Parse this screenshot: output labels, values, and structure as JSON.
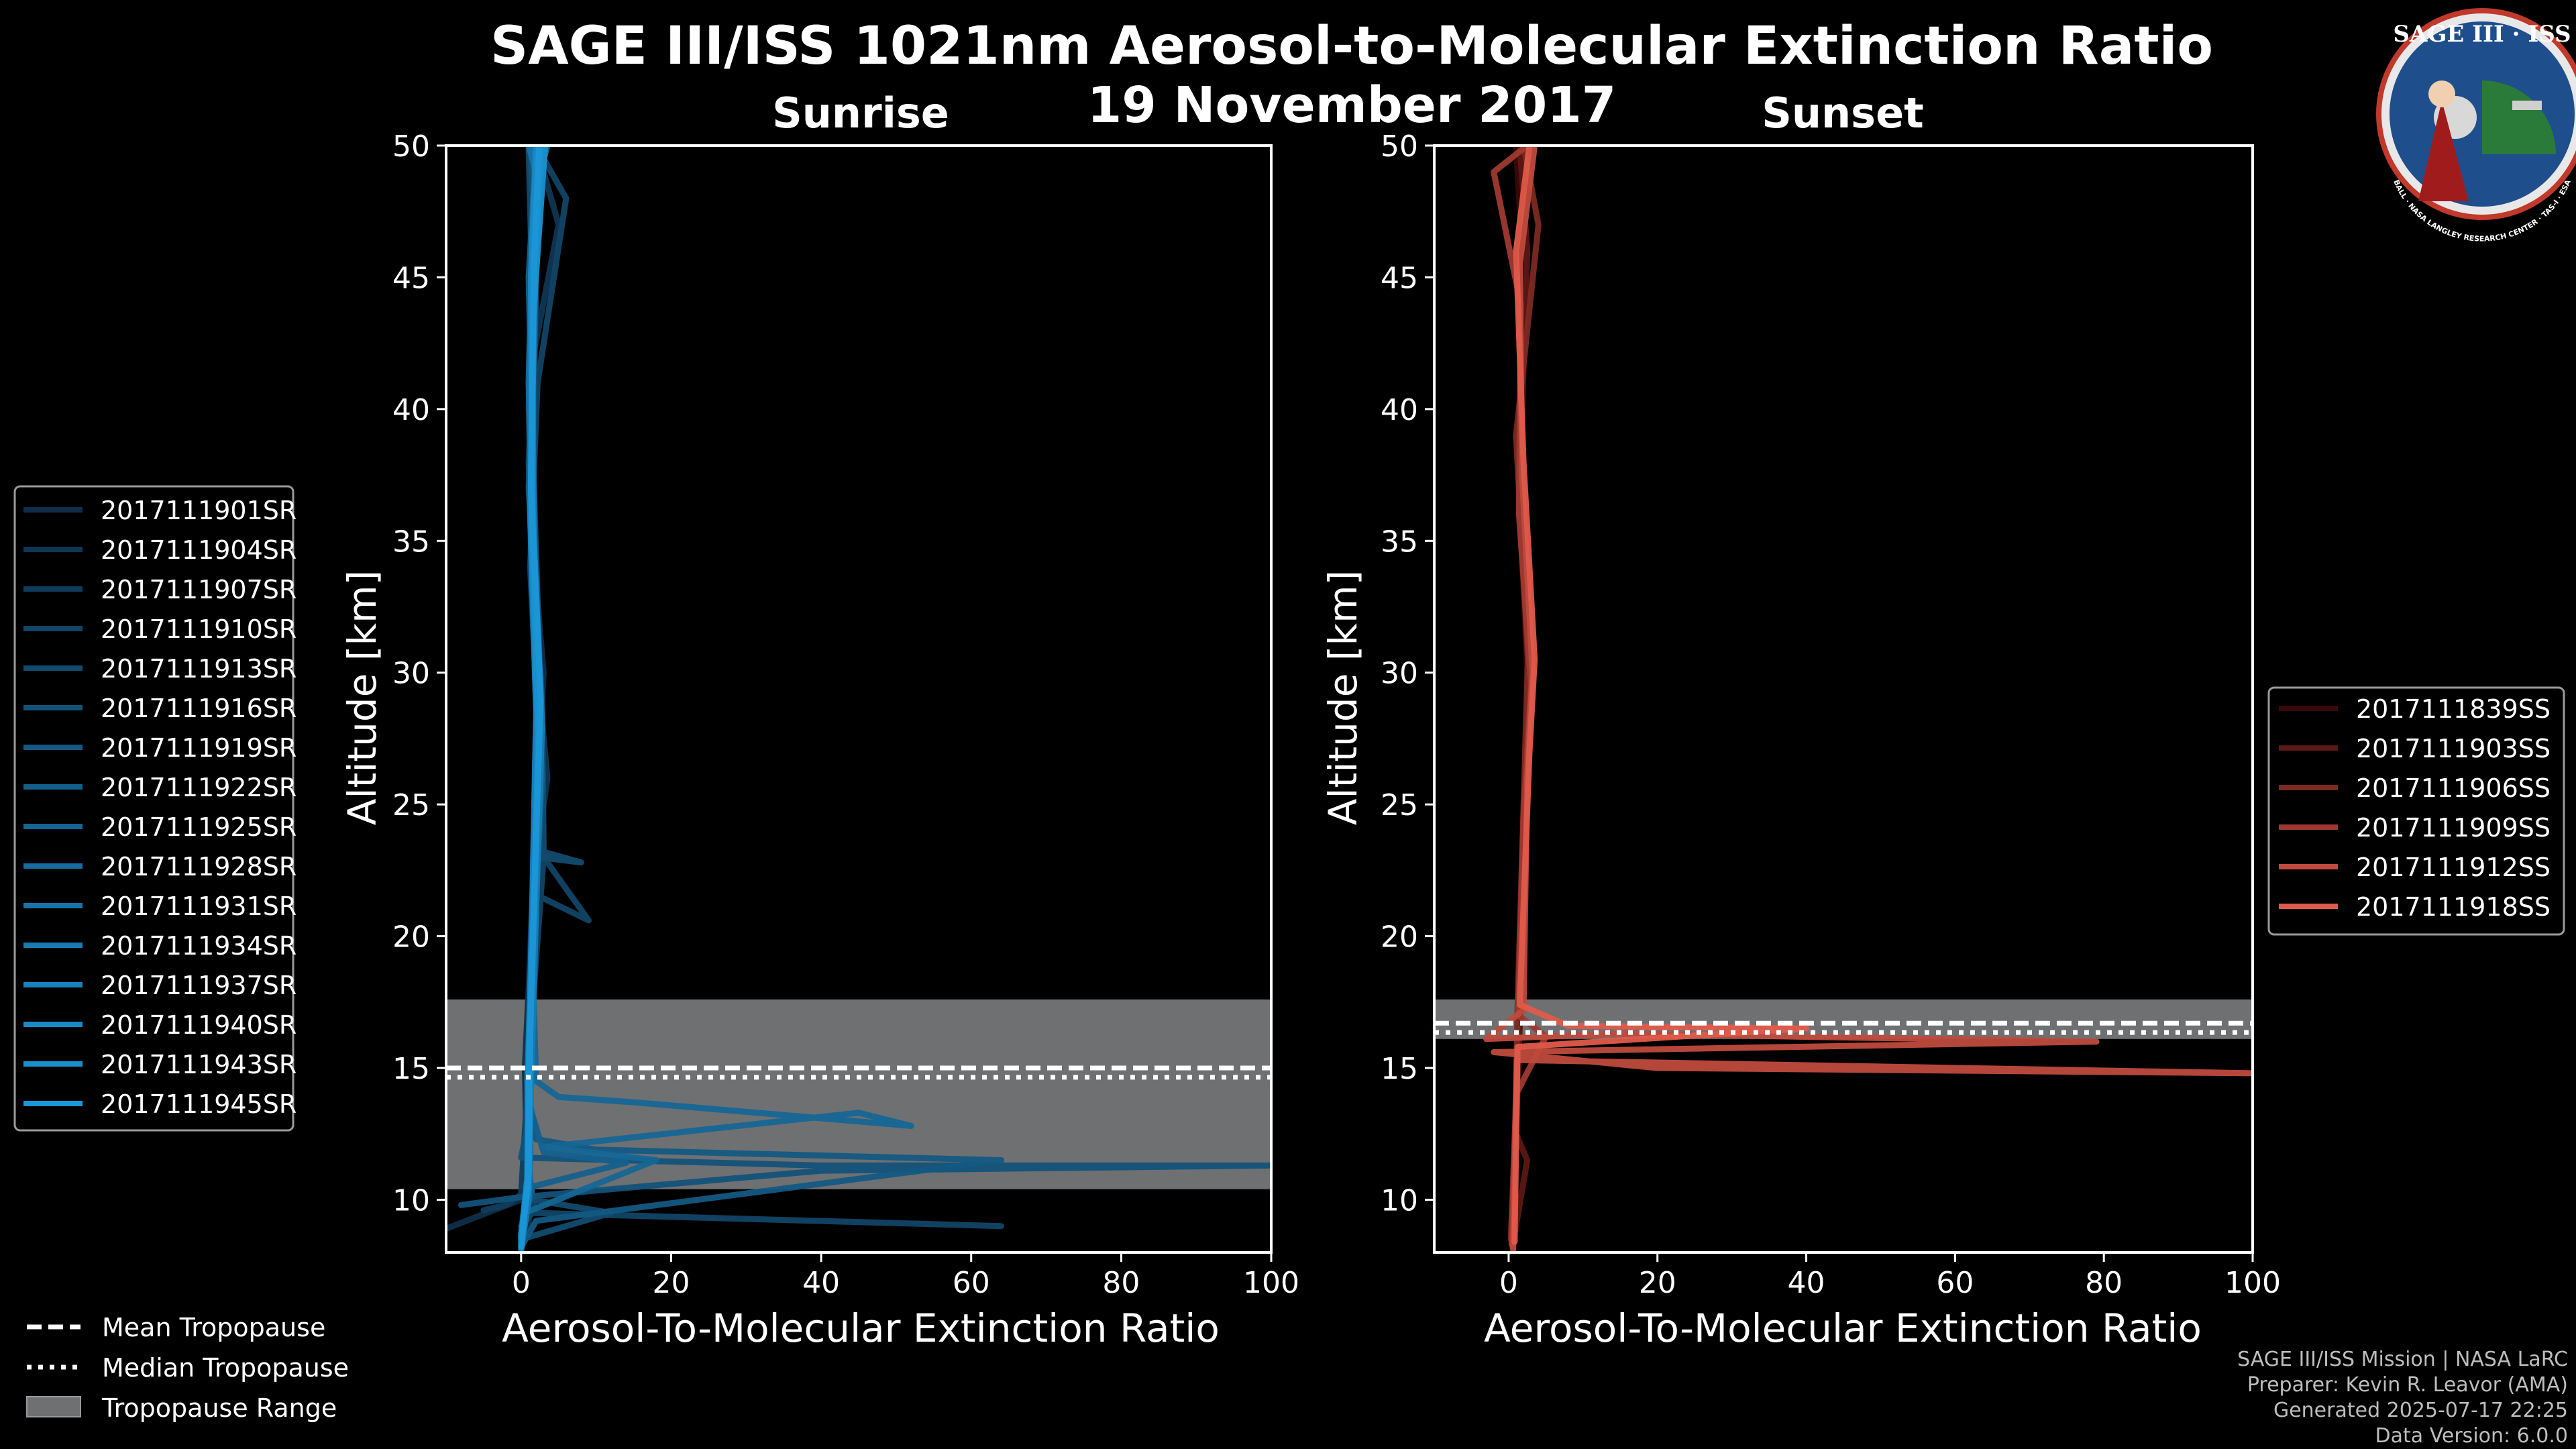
{
  "header": {
    "title_line1": "SAGE III/ISS 1021nm Aerosol-to-Molecular Extinction Ratio",
    "title_line2": "19 November 2017"
  },
  "logo": {
    "text_top": "SAGE III · ISS",
    "text_ring": "BALL · NASA LANGLEY RESEARCH CENTER · TAS-I · ESA",
    "bg_color": "#1e4e8c",
    "ring_color": "#c0392b"
  },
  "colors": {
    "sunrise_light": "#1a97d8",
    "sunrise_dark": "#0f2f49",
    "sunset_light": "#e05a4a",
    "sunset_dark": "#3a0808",
    "tropopause_band": "#6e7072"
  },
  "credits": {
    "line1": "SAGE III/ISS Mission | NASA LaRC",
    "line2": "Preparer: Kevin R. Leavor (AMA)",
    "line3": "Generated 2025-07-17 22:25",
    "line4": "Data Version: 6.0.0"
  },
  "bottom_legend": {
    "mean": "Mean Tropopause",
    "median": "Median Tropopause",
    "range": "Tropopause Range"
  },
  "chart_data": [
    {
      "type": "line",
      "title": "Sunrise",
      "xlabel": "Aerosol-To-Molecular Extinction Ratio",
      "ylabel": "Altitude [km]",
      "xlim": [
        -10,
        100
      ],
      "ylim": [
        8,
        50
      ],
      "xticks": [
        0,
        20,
        40,
        60,
        80,
        100
      ],
      "yticks": [
        10,
        15,
        20,
        25,
        30,
        35,
        40,
        45,
        50
      ],
      "tropopause": {
        "mean": 15.0,
        "median": 14.9,
        "range": [
          10.4,
          17.6
        ]
      },
      "series": [
        {
          "name": "2017111901SR",
          "points": [
            [
              -10,
              8.9
            ],
            [
              0,
              10.0
            ],
            [
              1.0,
              10.6
            ],
            [
              0.8,
              11.0
            ],
            [
              0.5,
              15.0
            ],
            [
              1.0,
              18.0
            ],
            [
              2.0,
              25.0
            ],
            [
              3.0,
              30.0
            ],
            [
              1.5,
              35.0
            ],
            [
              1.0,
              40.0
            ],
            [
              1.6,
              45.0
            ],
            [
              3.0,
              50.0
            ]
          ]
        },
        {
          "name": "2017111904SR",
          "points": [
            [
              0,
              8.3
            ],
            [
              1.0,
              9.0
            ],
            [
              1.2,
              12.0
            ],
            [
              0.8,
              15.0
            ],
            [
              1.5,
              18.0
            ],
            [
              2.5,
              24.0
            ],
            [
              3.5,
              26.0
            ],
            [
              2.2,
              30.0
            ],
            [
              1.3,
              36.0
            ],
            [
              1.6,
              42.0
            ],
            [
              5.0,
              47.0
            ],
            [
              2.0,
              50.0
            ]
          ]
        },
        {
          "name": "2017111907SR",
          "points": [
            [
              -5,
              9.6
            ],
            [
              -2,
              9.8
            ],
            [
              0,
              10.2
            ],
            [
              0.8,
              14.0
            ],
            [
              1.2,
              17.0
            ],
            [
              1.8,
              22.0
            ],
            [
              2.6,
              28.0
            ],
            [
              1.6,
              33.0
            ],
            [
              1.0,
              38.0
            ],
            [
              2.0,
              44.0
            ],
            [
              1.5,
              50.0
            ]
          ]
        },
        {
          "name": "2017111910SR",
          "points": [
            [
              0,
              9.0
            ],
            [
              1.5,
              9.5
            ],
            [
              64,
              9.0
            ],
            [
              2,
              9.5
            ],
            [
              1.0,
              11.0
            ],
            [
              1.2,
              16.0
            ],
            [
              3.0,
              23.0
            ],
            [
              9.0,
              20.6
            ],
            [
              2.5,
              21.5
            ],
            [
              2.4,
              27.0
            ],
            [
              1.2,
              34.0
            ],
            [
              2.2,
              41.0
            ],
            [
              6.0,
              48.0
            ],
            [
              2.0,
              50.0
            ]
          ]
        },
        {
          "name": "2017111913SR",
          "points": [
            [
              0,
              8.5
            ],
            [
              12,
              9.5
            ],
            [
              1.5,
              10.0
            ],
            [
              0.6,
              12.0
            ],
            [
              1.0,
              16.0
            ],
            [
              2.2,
              23.0
            ],
            [
              8.0,
              22.8
            ],
            [
              3.0,
              23.2
            ],
            [
              2.8,
              29.0
            ],
            [
              1.4,
              35.0
            ],
            [
              1.6,
              43.0
            ],
            [
              1.0,
              50.0
            ]
          ]
        },
        {
          "name": "2017111916SR",
          "points": [
            [
              -8,
              9.8
            ],
            [
              0,
              10.1
            ],
            [
              40,
              11.1
            ],
            [
              100,
              11.3
            ],
            [
              40,
              11.3
            ],
            [
              0,
              11.6
            ],
            [
              1.0,
              13.0
            ],
            [
              1.3,
              17.0
            ],
            [
              2.0,
              22.0
            ],
            [
              2.5,
              30.0
            ],
            [
              1.6,
              38.0
            ],
            [
              2.0,
              46.0
            ],
            [
              1.2,
              50.0
            ]
          ]
        },
        {
          "name": "2017111919SR",
          "points": [
            [
              0,
              8.2
            ],
            [
              2.0,
              9.2
            ],
            [
              64,
              11.5
            ],
            [
              10,
              11.9
            ],
            [
              2,
              12.3
            ],
            [
              1.0,
              14.0
            ],
            [
              1.2,
              17.5
            ],
            [
              1.8,
              24.0
            ],
            [
              2.2,
              31.0
            ],
            [
              1.0,
              37.0
            ],
            [
              1.8,
              44.0
            ],
            [
              2.5,
              50.0
            ]
          ]
        },
        {
          "name": "2017111922SR",
          "points": [
            [
              0,
              8.6
            ],
            [
              1.5,
              10.5
            ],
            [
              14,
              11.4
            ],
            [
              3,
              11.8
            ],
            [
              1.2,
              13.5
            ],
            [
              1.4,
              18.5
            ],
            [
              2.8,
              26.0
            ],
            [
              2.0,
              31.5
            ],
            [
              1.5,
              39.0
            ],
            [
              1.0,
              45.0
            ],
            [
              2.0,
              50.0
            ]
          ]
        },
        {
          "name": "2017111925SR",
          "points": [
            [
              0,
              8.0
            ],
            [
              0.5,
              9.5
            ],
            [
              18,
              11.5
            ],
            [
              3,
              12.0
            ],
            [
              45,
              13.3
            ],
            [
              52,
              12.8
            ],
            [
              15,
              13.7
            ],
            [
              5,
              13.9
            ],
            [
              2.0,
              14.5
            ],
            [
              1.5,
              19.0
            ],
            [
              2.4,
              25.0
            ],
            [
              1.8,
              32.0
            ],
            [
              1.2,
              40.0
            ],
            [
              2.2,
              47.0
            ],
            [
              1.5,
              50.0
            ]
          ]
        },
        {
          "name": "2017111928SR",
          "points": [
            [
              0,
              8.4
            ],
            [
              1.2,
              10.5
            ],
            [
              0.8,
              14.5
            ],
            [
              1.4,
              19.5
            ],
            [
              2.6,
              26.0
            ],
            [
              1.6,
              33.0
            ],
            [
              1.0,
              41.0
            ],
            [
              1.6,
              48.0
            ],
            [
              3.5,
              50.0
            ]
          ]
        },
        {
          "name": "2017111931SR",
          "points": [
            [
              0,
              8.7
            ],
            [
              0.9,
              11.0
            ],
            [
              1.1,
              15.0
            ],
            [
              1.6,
              20.0
            ],
            [
              2.2,
              27.0
            ],
            [
              1.4,
              34.0
            ],
            [
              1.2,
              42.0
            ],
            [
              2.0,
              49.0
            ],
            [
              1.0,
              50.0
            ]
          ]
        },
        {
          "name": "2017111934SR",
          "points": [
            [
              0,
              8.1
            ],
            [
              1.0,
              10.0
            ],
            [
              1.3,
              14.0
            ],
            [
              2.0,
              21.0
            ],
            [
              2.8,
              28.0
            ],
            [
              1.7,
              35.0
            ],
            [
              1.5,
              43.0
            ],
            [
              2.3,
              50.0
            ]
          ]
        },
        {
          "name": "2017111937SR",
          "points": [
            [
              0,
              8.5
            ],
            [
              0.8,
              10.8
            ],
            [
              1.0,
              15.5
            ],
            [
              1.5,
              21.5
            ],
            [
              2.0,
              28.5
            ],
            [
              1.2,
              36.0
            ],
            [
              1.8,
              44.0
            ],
            [
              2.7,
              50.0
            ]
          ]
        },
        {
          "name": "2017111940SR",
          "points": [
            [
              0,
              8.3
            ],
            [
              1.1,
              11.2
            ],
            [
              1.2,
              16.0
            ],
            [
              1.9,
              22.5
            ],
            [
              2.5,
              29.5
            ],
            [
              1.5,
              36.5
            ],
            [
              1.3,
              45.0
            ],
            [
              2.0,
              50.0
            ]
          ]
        },
        {
          "name": "2017111943SR",
          "points": [
            [
              0,
              8.6
            ],
            [
              0.9,
              10.4
            ],
            [
              1.0,
              14.8
            ],
            [
              1.7,
              21.0
            ],
            [
              2.3,
              27.5
            ],
            [
              1.4,
              35.5
            ],
            [
              1.6,
              43.5
            ],
            [
              3.2,
              50.0
            ]
          ]
        },
        {
          "name": "2017111945SR",
          "points": [
            [
              0,
              8.2
            ],
            [
              1.0,
              11.0
            ],
            [
              1.1,
              15.2
            ],
            [
              1.8,
              22.0
            ],
            [
              2.6,
              29.0
            ],
            [
              1.3,
              37.0
            ],
            [
              1.7,
              45.5
            ],
            [
              2.4,
              50.0
            ]
          ]
        }
      ]
    },
    {
      "type": "line",
      "title": "Sunset",
      "xlabel": "Aerosol-To-Molecular Extinction Ratio",
      "ylabel": "Altitude [km]",
      "xlim": [
        -10,
        100
      ],
      "ylim": [
        8,
        50
      ],
      "xticks": [
        0,
        20,
        40,
        60,
        80,
        100
      ],
      "yticks": [
        10,
        15,
        20,
        25,
        30,
        35,
        40,
        45,
        50
      ],
      "tropopause": {
        "mean": 16.7,
        "median": 16.6,
        "range": [
          16.1,
          17.6
        ]
      },
      "series": [
        {
          "name": "2017111839SS",
          "points": [
            [
              0.5,
              8.0
            ],
            [
              0.8,
              12.0
            ],
            [
              1.5,
              17.0
            ],
            [
              2.0,
              25.0
            ],
            [
              2.5,
              30.0
            ],
            [
              1.2,
              38.0
            ],
            [
              2.0,
              45.0
            ],
            [
              1.0,
              50.0
            ]
          ]
        },
        {
          "name": "2017111903SS",
          "points": [
            [
              0.5,
              8.2
            ],
            [
              2.5,
              11.5
            ],
            [
              1.0,
              12.5
            ],
            [
              1.6,
              17.5
            ],
            [
              2.2,
              24.0
            ],
            [
              2.8,
              31.0
            ],
            [
              1.5,
              37.0
            ],
            [
              2.5,
              46.0
            ],
            [
              1.5,
              50.0
            ]
          ]
        },
        {
          "name": "2017111906SS",
          "points": [
            [
              0.3,
              8.5
            ],
            [
              0.9,
              13.0
            ],
            [
              1.2,
              17.3
            ],
            [
              1.8,
              23.0
            ],
            [
              2.6,
              30.5
            ],
            [
              1.0,
              39.0
            ],
            [
              4.0,
              47.0
            ],
            [
              2.0,
              50.0
            ]
          ]
        },
        {
          "name": "2017111909SS",
          "points": [
            [
              0.4,
              8.3
            ],
            [
              1.0,
              14.0
            ],
            [
              5,
              16.2
            ],
            [
              1.3,
              17.0
            ],
            [
              2.0,
              24.5
            ],
            [
              3.0,
              29.5
            ],
            [
              1.4,
              36.0
            ],
            [
              1.6,
              44.0
            ],
            [
              -2,
              49.0
            ],
            [
              2.5,
              50.0
            ]
          ]
        },
        {
          "name": "2017111912SS",
          "points": [
            [
              0.6,
              8.1
            ],
            [
              1.1,
              15.3
            ],
            [
              100,
              14.8
            ],
            [
              20,
              15.0
            ],
            [
              -2,
              15.6
            ],
            [
              79,
              16.0
            ],
            [
              15,
              16.3
            ],
            [
              -3,
              16.1
            ],
            [
              2.0,
              17.2
            ],
            [
              2.5,
              26.0
            ],
            [
              3.2,
              30.0
            ],
            [
              1.8,
              37.5
            ],
            [
              1.5,
              45.5
            ],
            [
              3.5,
              50.0
            ]
          ]
        },
        {
          "name": "2017111918SS",
          "points": [
            [
              0.8,
              8.4
            ],
            [
              1.2,
              15.8
            ],
            [
              40,
              16.5
            ],
            [
              8,
              16.6
            ],
            [
              1.5,
              17.4
            ],
            [
              2.8,
              27.0
            ],
            [
              3.5,
              30.5
            ],
            [
              2.0,
              38.0
            ],
            [
              1.0,
              46.0
            ],
            [
              2.8,
              50.0
            ]
          ]
        }
      ]
    }
  ]
}
